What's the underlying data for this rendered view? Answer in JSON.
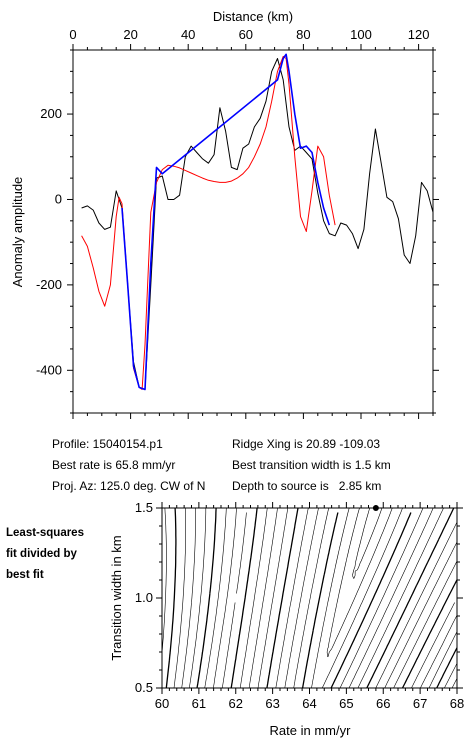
{
  "info": {
    "profile": "Profile: 15040154.p1",
    "best_rate": "Best rate is 65.8 mm/yr",
    "proj_az": "Proj. Az: 125.0 deg. CW of N",
    "ridge_xing": "Ridge Xing is 20.89 -109.03",
    "best_transition": "Best transition width is 1.5 km",
    "depth_to_source": "Depth to source is   2.85 km"
  },
  "side_note": [
    "Least-squares",
    "fit divided by",
    "best fit"
  ],
  "chart_data": [
    {
      "type": "line",
      "title": "",
      "xlabel": "Distance (km)",
      "ylabel": "Anomaly amplitude",
      "xlim": [
        0,
        125
      ],
      "ylim": [
        -500,
        350
      ],
      "x_ticks": [
        0,
        20,
        40,
        60,
        80,
        100,
        120
      ],
      "y_ticks": [
        -400,
        -200,
        0,
        200
      ],
      "series": [
        {
          "color": "#000000",
          "x": [
            3,
            5,
            7,
            9,
            11,
            13,
            15,
            17,
            19,
            21,
            23,
            25,
            27,
            29,
            31,
            33,
            35,
            37,
            39,
            41,
            43,
            45,
            47,
            49,
            51,
            53,
            55,
            57,
            59,
            61,
            63,
            65,
            67,
            69,
            71,
            73,
            75,
            77,
            79,
            81,
            83,
            85,
            87,
            89,
            91,
            93,
            95,
            97,
            99,
            101,
            103,
            105,
            107,
            109,
            111,
            113,
            115,
            117,
            119,
            121,
            123,
            125
          ],
          "y": [
            -20,
            -15,
            -25,
            -55,
            -70,
            -65,
            20,
            -20,
            -200,
            -380,
            -440,
            -445,
            -200,
            50,
            55,
            0,
            0,
            10,
            100,
            125,
            110,
            95,
            85,
            105,
            215,
            160,
            75,
            70,
            120,
            130,
            170,
            190,
            230,
            300,
            330,
            280,
            170,
            115,
            125,
            110,
            95,
            15,
            -50,
            -80,
            -85,
            -55,
            -60,
            -80,
            -115,
            -70,
            60,
            165,
            85,
            5,
            -5,
            -45,
            -130,
            -150,
            -85,
            40,
            20,
            -30
          ],
          "note": "observed profile"
        },
        {
          "color": "#ff0000",
          "x": [
            3,
            5,
            7,
            9,
            11,
            13,
            15,
            16,
            17,
            19,
            21,
            23,
            24,
            25,
            27,
            29,
            31,
            33,
            35,
            37,
            39,
            41,
            43,
            45,
            47,
            49,
            51,
            53,
            55,
            57,
            59,
            61,
            63,
            65,
            67,
            69,
            71,
            73,
            74,
            75,
            77,
            79,
            81,
            83,
            85,
            87,
            89,
            91
          ],
          "y": [
            -85,
            -110,
            -160,
            -215,
            -250,
            -200,
            -40,
            5,
            -10,
            -200,
            -395,
            -440,
            -445,
            -340,
            -30,
            40,
            70,
            80,
            78,
            74,
            68,
            62,
            56,
            50,
            45,
            42,
            40,
            40,
            43,
            50,
            60,
            75,
            100,
            130,
            170,
            230,
            300,
            335,
            330,
            270,
            100,
            -40,
            -75,
            20,
            125,
            100,
            10,
            -60
          ]
        },
        {
          "color": "#0000ff",
          "x": [
            17,
            19,
            21,
            23,
            25,
            27,
            29,
            31,
            71,
            73,
            74,
            75,
            77,
            79,
            81,
            83,
            85,
            87,
            89
          ],
          "y": [
            -20,
            -200,
            -390,
            -440,
            -445,
            -150,
            75,
            60,
            280,
            330,
            340,
            300,
            200,
            120,
            125,
            110,
            40,
            -20,
            -60
          ]
        }
      ]
    },
    {
      "type": "heatmap",
      "title": "",
      "xlabel": "Rate in mm/yr",
      "ylabel": "Transition width in km",
      "xlim": [
        60,
        68
      ],
      "ylim": [
        0.5,
        1.5
      ],
      "x_ticks": [
        60,
        61,
        62,
        63,
        64,
        65,
        66,
        67,
        68
      ],
      "y_ticks": [
        0.5,
        1.0,
        1.5
      ],
      "best_fit": {
        "rate": 65.8,
        "width": 1.5
      },
      "note": "contour plot of least-squares misfit"
    }
  ]
}
